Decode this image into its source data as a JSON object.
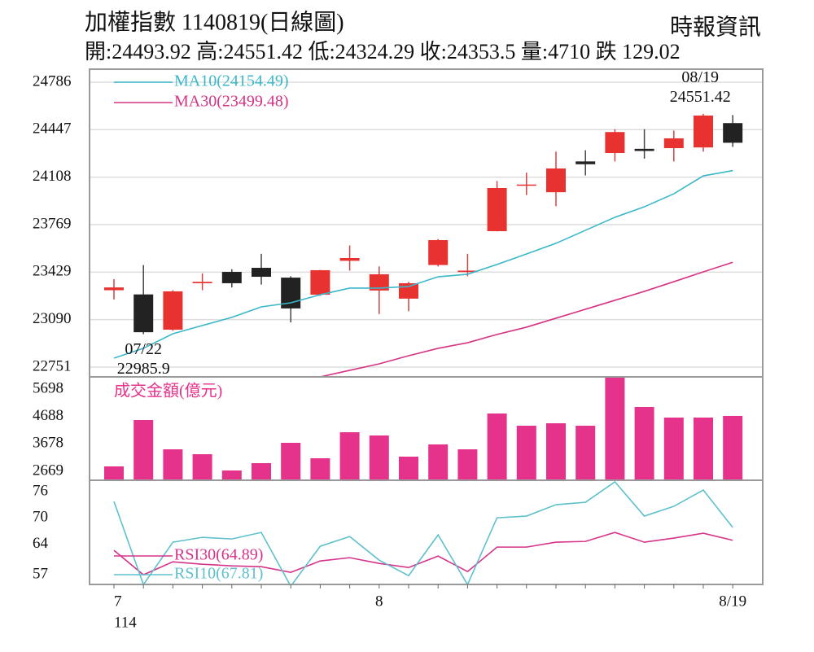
{
  "header": {
    "title": "加權指數 1140819(日線圖)",
    "source": "時報資訊",
    "info": "開:24493.92 高:24551.42 低:24324.29 收:24353.5 量:4710 跌 129.02"
  },
  "chart_data": [
    {
      "type": "candlestick",
      "up_color": "#e8322f",
      "down_color": "#222222",
      "open": [
        23300,
        23270,
        23018,
        23350,
        23431,
        23460,
        23390,
        23268,
        23510,
        23298,
        23240,
        23480,
        23430,
        23722,
        24050,
        24000,
        24220,
        24280,
        24310,
        24315,
        24320,
        24493.92
      ],
      "high": [
        23379,
        23480,
        23300,
        23420,
        23450,
        23560,
        23400,
        23445,
        23620,
        23470,
        23360,
        23665,
        23560,
        24080,
        24140,
        24290,
        24300,
        24450,
        24450,
        24440,
        24560,
        24551.42
      ],
      "low": [
        23234,
        22985.9,
        23010,
        23300,
        23320,
        23340,
        23070,
        23260,
        23440,
        23130,
        23150,
        23470,
        23400,
        23720,
        23980,
        23900,
        24120,
        24220,
        24240,
        24220,
        24290,
        24324.29
      ],
      "close": [
        23320,
        23000,
        23292,
        23360,
        23350,
        23396,
        23170,
        23443,
        23530,
        23414,
        23350,
        23658,
        23440,
        24030,
        24055,
        24170,
        24200,
        24430,
        24295,
        24385,
        24548,
        24353.5
      ],
      "series": [
        {
          "name": "MA10(24154.49)",
          "color": "#3ab7c8",
          "values": [
            22815,
            22885,
            22989,
            23048,
            23106,
            23181,
            23210,
            23268,
            23315,
            23315,
            23327,
            23396,
            23414,
            23484,
            23559,
            23635,
            23728,
            23821,
            23896,
            23989,
            24117,
            24154.49
          ]
        },
        {
          "name": "MA30(23499.48)",
          "color": "#d63384",
          "values": [
            22681,
            22681,
            22681,
            22681,
            22681,
            22681,
            22681,
            22681,
            22728,
            22774,
            22832,
            22885,
            22925,
            22984,
            23036,
            23100,
            23164,
            23228,
            23292,
            23361,
            23431,
            23499.48
          ]
        }
      ],
      "annotations": [
        {
          "date": "07/22",
          "value": 22985.9
        },
        {
          "date": "08/19",
          "value": 24551.42
        }
      ],
      "ylim": [
        22681,
        24879
      ],
      "yticks": [
        24786,
        24447,
        24108,
        23769,
        23429,
        23090,
        22751
      ],
      "grid": true
    },
    {
      "type": "bar",
      "title": "成交金額(億元)",
      "color": "#e5328a",
      "values": [
        2849,
        4558,
        3479,
        3299,
        2699,
        2969,
        3719,
        3149,
        4108,
        3989,
        3209,
        3659,
        3479,
        4798,
        4348,
        4438,
        4348,
        6148,
        5038,
        4648,
        4648,
        4710
      ],
      "ylim": [
        2339,
        6148
      ],
      "yticks": [
        5698,
        4688,
        3678,
        2669
      ]
    },
    {
      "type": "line",
      "categories": [
        "7",
        null,
        null,
        null,
        null,
        null,
        null,
        null,
        null,
        "8",
        null,
        null,
        null,
        null,
        null,
        null,
        null,
        null,
        null,
        null,
        null,
        "8/19"
      ],
      "x_axis_year": "114",
      "series": [
        {
          "name": "RSI30(64.89)",
          "color": "#d6338a",
          "values": [
            62.59,
            57.0,
            59.98,
            59.42,
            59.05,
            58.86,
            57.56,
            60.16,
            60.91,
            59.6,
            58.67,
            61.28,
            57.74,
            63.33,
            63.33,
            64.45,
            64.63,
            66.68,
            64.45,
            65.38,
            66.5,
            64.89
          ]
        },
        {
          "name": "RSI10(67.81)",
          "color": "#5fc0cc",
          "values": [
            73.76,
            54.76,
            64.45,
            65.56,
            65.19,
            66.68,
            54.4,
            63.52,
            65.75,
            60.35,
            56.81,
            66.12,
            54.76,
            70.03,
            70.41,
            73.01,
            73.57,
            78.23,
            70.41,
            72.64,
            76.37,
            67.81
          ]
        }
      ],
      "ylim": [
        54.8,
        78.6
      ],
      "yticks": [
        76,
        70,
        64,
        57
      ]
    }
  ]
}
